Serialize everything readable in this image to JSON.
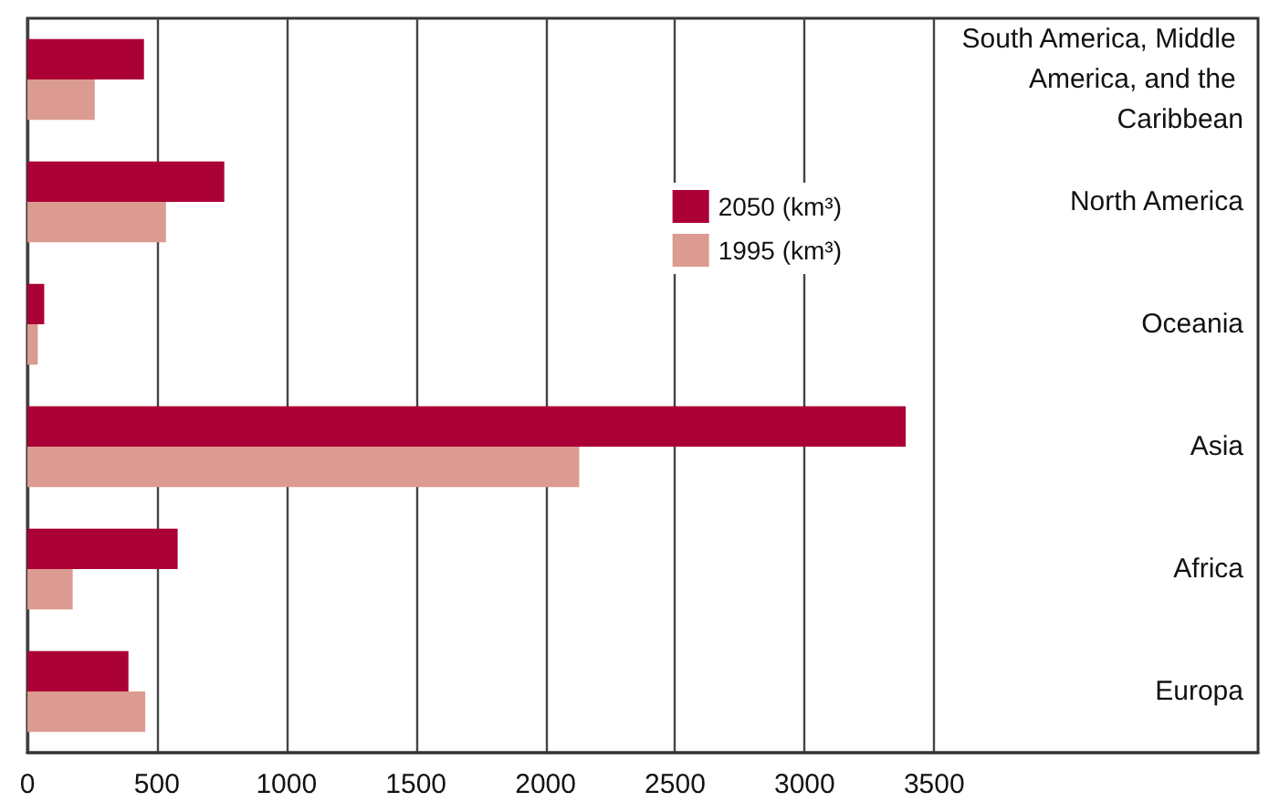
{
  "chart_data": {
    "type": "bar",
    "orientation": "horizontal",
    "categories": [
      "South America, Middle America, and the Caribbean",
      "North America",
      "Oceania",
      "Asia",
      "Africa",
      "Europa"
    ],
    "series": [
      {
        "name": "2050 (km³)",
        "color": "#ab0035",
        "values": [
          450,
          760,
          65,
          3390,
          580,
          390
        ]
      },
      {
        "name": "1995 (km³)",
        "color": "#dc9b90",
        "values": [
          260,
          535,
          40,
          2130,
          175,
          455
        ]
      }
    ],
    "xlim": [
      0,
      4750
    ],
    "xticks": [
      0,
      500,
      1000,
      1500,
      2000,
      2500,
      3000,
      3500
    ],
    "grid": "x",
    "legend": "top right"
  }
}
